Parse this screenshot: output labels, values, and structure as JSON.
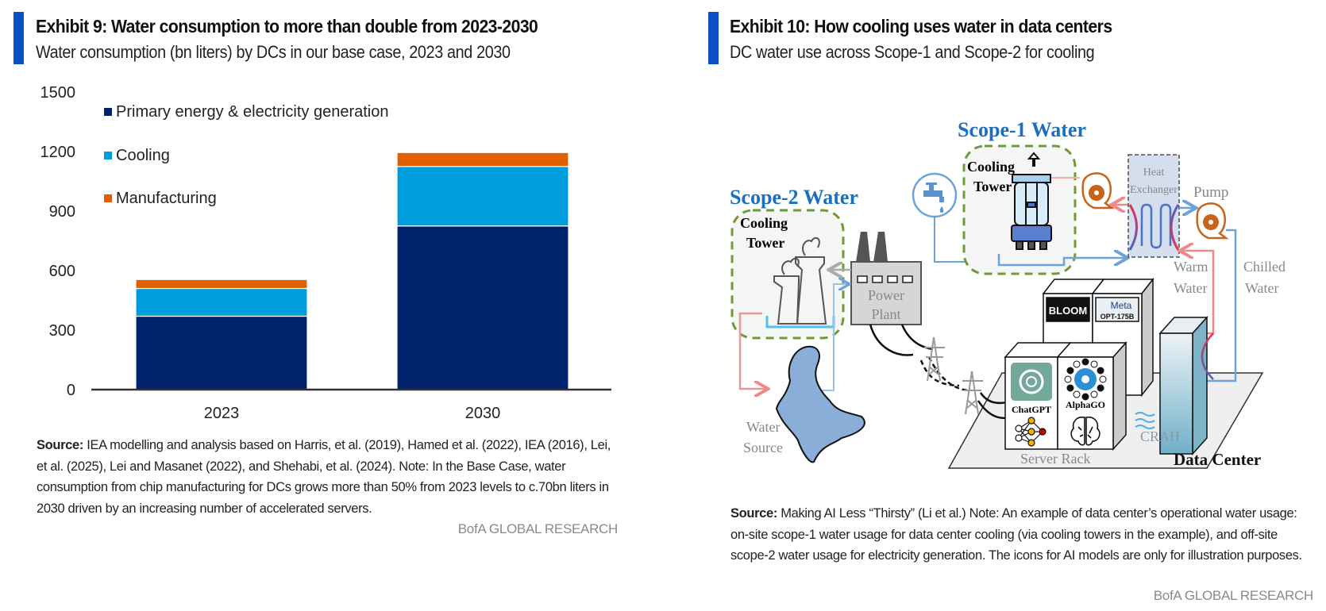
{
  "left": {
    "exhibit_title": "Exhibit 9: Water consumption to more than double from 2023-2030",
    "subtitle": "Water consumption (bn liters) by DCs in our base case, 2023 and 2030",
    "source_label": "Source:",
    "source_text": " IEA modelling and analysis based on Harris, et al. (2019), Hamed et al. (2022), IEA (2016), Lei, et al. (2025), Lei and Masanet (2022), and Shehabi, et al. (2024). Note: In the Base Case, water consumption from chip manufacturing for DCs grows more than 50% from 2023 levels to c.70bn liters in 2030 driven by an increasing number of accelerated servers.",
    "brand": "BofA GLOBAL RESEARCH",
    "accent_color": "#0a4fc4"
  },
  "right": {
    "exhibit_title": "Exhibit 10: How cooling uses water in data centers",
    "subtitle": "DC water use across Scope-1 and Scope-2 for cooling",
    "source_label": "Source:",
    "source_text": " Making AI Less “Thirsty” (Li et al.) Note: An example of data center’s operational water usage: on-site scope-1 water usage for data center cooling (via cooling towers in the example), and off-site scope-2 water usage for electricity generation. The icons for AI models are only for illustration purposes.",
    "brand": "BofA GLOBAL RESEARCH",
    "accent_color": "#0a4fc4",
    "diagram": {
      "scope1_label": "Scope-1 Water",
      "scope2_label": "Scope-2 Water",
      "cooling_tower_line1": "Cooling",
      "cooling_tower_line2": "Tower",
      "power_plant_line1": "Power",
      "power_plant_line2": "Plant",
      "heat_exchanger_line1": "Heat",
      "heat_exchanger_line2": "Exchanger",
      "pump_label": "Pump",
      "warm_water_line1": "Warm",
      "warm_water_line2": "Water",
      "chilled_water_line1": "Chilled",
      "chilled_water_line2": "Water",
      "water_source_line1": "Water",
      "water_source_line2": "Source",
      "server_rack_label": "Server Rack",
      "data_center_label": "Data Center",
      "crah_label": "CRAH",
      "chatgpt_label": "ChatGPT",
      "alphago_label": "AlphaGO",
      "bloom_label": "BLOOM",
      "meta_label": "Meta",
      "meta_model": "OPT-175B",
      "scope_color": "#1a6fc0",
      "dash_color": "#6f9a3a"
    }
  },
  "chart_data": {
    "type": "bar",
    "stacked": true,
    "title": "Water consumption (bn liters) by DCs in our base case, 2023 and 2030",
    "xlabel": "",
    "ylabel": "",
    "categories": [
      "2023",
      "2030"
    ],
    "ylim": [
      0,
      1500
    ],
    "yticks": [
      0,
      300,
      600,
      900,
      1200,
      1500
    ],
    "grid": false,
    "legend_position": "top-left",
    "series": [
      {
        "name": "Primary energy & electricity generation",
        "color": "#00226a",
        "values": [
          370,
          825
        ]
      },
      {
        "name": "Cooling",
        "color": "#009ddc",
        "values": [
          140,
          300
        ]
      },
      {
        "name": "Manufacturing",
        "color": "#e06000",
        "values": [
          45,
          70
        ]
      }
    ]
  }
}
